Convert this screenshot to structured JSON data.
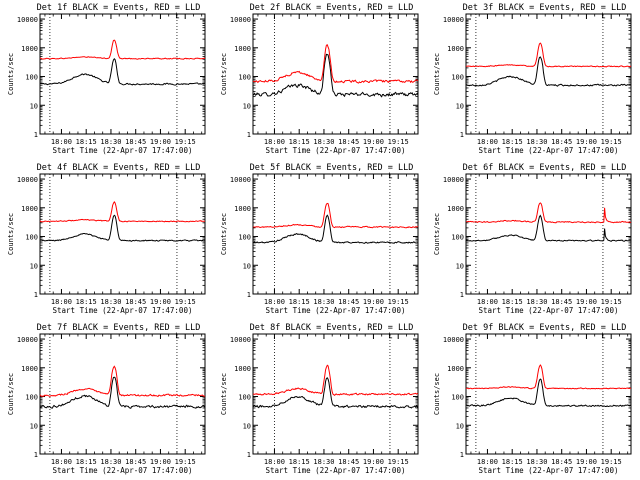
{
  "window": {
    "background": "#ffffff"
  },
  "colors": {
    "events": "#000000",
    "lld": "#ff0000",
    "axis": "#000000"
  },
  "shared": {
    "ylabel": "Counts/sec",
    "xlabel": "Start Time (22-Apr-07 17:47:00)",
    "ytick_labels": [
      "1",
      "10",
      "100",
      "1000",
      "10000"
    ],
    "ytick_values": [
      1,
      10,
      100,
      1000,
      10000
    ],
    "xtick_labels": [
      "18:00",
      "18:15",
      "18:30",
      "18:45",
      "19:00",
      "19:15"
    ],
    "xtick_minutes": [
      13,
      28,
      43,
      58,
      73,
      88
    ],
    "xlim_minutes": [
      0,
      100
    ],
    "ylim": [
      1,
      15000
    ],
    "dotted_minutes_a": [
      6,
      83
    ],
    "dotted_minutes_b": [
      13,
      83
    ]
  },
  "chart_data": [
    {
      "type": "line",
      "title": "Det 1f BLACK = Events, RED = LLD",
      "legend_glyph": "└",
      "dotted": "a",
      "series": [
        {
          "name": "Events",
          "color": "#000000",
          "base": 55,
          "hump_peak": 65,
          "hump_center": 27,
          "flare_peak": 340,
          "flare_center": 45,
          "noise": 0.05,
          "spikes": []
        },
        {
          "name": "LLD",
          "color": "#ff0000",
          "base": 420,
          "hump_peak": 60,
          "hump_center": 27,
          "flare_peak": 1450,
          "flare_center": 45,
          "noise": 0.03,
          "spikes": []
        }
      ]
    },
    {
      "type": "line",
      "title": "Det 2f BLACK = Events, RED = LLD",
      "legend_glyph": "└",
      "dotted": "b",
      "series": [
        {
          "name": "Events",
          "color": "#000000",
          "base": 24,
          "hump_peak": 26,
          "hump_center": 27,
          "flare_peak": 620,
          "flare_center": 45,
          "noise": 0.12,
          "spikes": []
        },
        {
          "name": "LLD",
          "color": "#ff0000",
          "base": 68,
          "hump_peak": 72,
          "hump_center": 27,
          "flare_peak": 1150,
          "flare_center": 45,
          "noise": 0.08,
          "spikes": []
        }
      ]
    },
    {
      "type": "line",
      "title": "Det 3f BLACK = Events, RED = LLD",
      "legend_glyph": "└",
      "dotted": "a",
      "series": [
        {
          "name": "Events",
          "color": "#000000",
          "base": 50,
          "hump_peak": 50,
          "hump_center": 27,
          "flare_peak": 430,
          "flare_center": 45,
          "noise": 0.05,
          "spikes": []
        },
        {
          "name": "LLD",
          "color": "#ff0000",
          "base": 225,
          "hump_peak": 30,
          "hump_center": 27,
          "flare_peak": 1200,
          "flare_center": 45,
          "noise": 0.03,
          "spikes": []
        }
      ]
    },
    {
      "type": "line",
      "title": "Det 4f BLACK = Events, RED = LLD",
      "legend_glyph": "└",
      "dotted": "a",
      "series": [
        {
          "name": "Events",
          "color": "#000000",
          "base": 72,
          "hump_peak": 50,
          "hump_center": 27,
          "flare_peak": 480,
          "flare_center": 45,
          "noise": 0.04,
          "spikes": []
        },
        {
          "name": "LLD",
          "color": "#ff0000",
          "base": 340,
          "hump_peak": 40,
          "hump_center": 27,
          "flare_peak": 1250,
          "flare_center": 45,
          "noise": 0.03,
          "spikes": []
        }
      ]
    },
    {
      "type": "line",
      "title": "Det 5f BLACK = Events, RED = LLD",
      "legend_glyph": "└",
      "dotted": "b",
      "series": [
        {
          "name": "Events",
          "color": "#000000",
          "base": 62,
          "hump_peak": 60,
          "hump_center": 27,
          "flare_peak": 470,
          "flare_center": 45,
          "noise": 0.05,
          "spikes": []
        },
        {
          "name": "LLD",
          "color": "#ff0000",
          "base": 215,
          "hump_peak": 45,
          "hump_center": 27,
          "flare_peak": 1300,
          "flare_center": 45,
          "noise": 0.04,
          "spikes": []
        }
      ]
    },
    {
      "type": "line",
      "title": "Det 6f BLACK = Events, RED = LLD",
      "legend_glyph": "└",
      "dotted": "a",
      "series": [
        {
          "name": "Events",
          "color": "#000000",
          "base": 72,
          "hump_peak": 40,
          "hump_center": 27,
          "flare_peak": 450,
          "flare_center": 45,
          "noise": 0.04,
          "spikes": [
            {
              "minute": 84,
              "value": 190
            }
          ]
        },
        {
          "name": "LLD",
          "color": "#ff0000",
          "base": 320,
          "hump_peak": 40,
          "hump_center": 27,
          "flare_peak": 1200,
          "flare_center": 45,
          "noise": 0.04,
          "spikes": [
            {
              "minute": 84,
              "value": 1000
            }
          ]
        }
      ]
    },
    {
      "type": "line",
      "title": "Det 7f BLACK = Events, RED = LLD",
      "legend_glyph": "└",
      "dotted": "a",
      "series": [
        {
          "name": "Events",
          "color": "#000000",
          "base": 45,
          "hump_peak": 60,
          "hump_center": 27,
          "flare_peak": 440,
          "flare_center": 45,
          "noise": 0.08,
          "spikes": []
        },
        {
          "name": "LLD",
          "color": "#ff0000",
          "base": 110,
          "hump_peak": 75,
          "hump_center": 27,
          "flare_peak": 1050,
          "flare_center": 45,
          "noise": 0.06,
          "spikes": []
        }
      ]
    },
    {
      "type": "line",
      "title": "Det 8f BLACK = Events, RED = LLD",
      "legend_glyph": "└",
      "dotted": "b",
      "series": [
        {
          "name": "Events",
          "color": "#000000",
          "base": 45,
          "hump_peak": 55,
          "hump_center": 27,
          "flare_peak": 400,
          "flare_center": 45,
          "noise": 0.08,
          "spikes": []
        },
        {
          "name": "LLD",
          "color": "#ff0000",
          "base": 120,
          "hump_peak": 70,
          "hump_center": 27,
          "flare_peak": 1100,
          "flare_center": 45,
          "noise": 0.06,
          "spikes": []
        }
      ]
    },
    {
      "type": "line",
      "title": "Det 9f BLACK = Events, RED = LLD",
      "legend_glyph": "└",
      "dotted": "a",
      "series": [
        {
          "name": "Events",
          "color": "#000000",
          "base": 48,
          "hump_peak": 40,
          "hump_center": 27,
          "flare_peak": 350,
          "flare_center": 45,
          "noise": 0.05,
          "spikes": []
        },
        {
          "name": "LLD",
          "color": "#ff0000",
          "base": 190,
          "hump_peak": 25,
          "hump_center": 27,
          "flare_peak": 1050,
          "flare_center": 45,
          "noise": 0.03,
          "spikes": []
        }
      ]
    }
  ]
}
